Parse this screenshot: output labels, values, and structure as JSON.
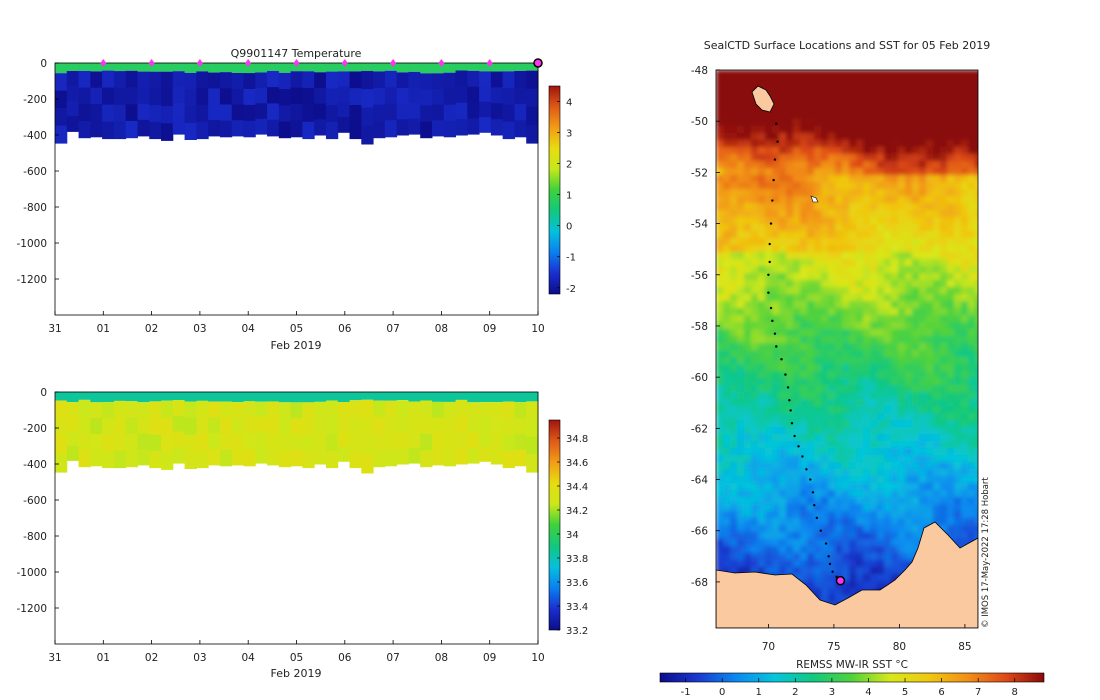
{
  "colors": {
    "land": "#fbc9a0",
    "marker": "#ff33ee",
    "track": "#000000",
    "temp_ramp": [
      "#0c0c8a",
      "#1a2fcf",
      "#0b7ff0",
      "#05c0dc",
      "#12c87e",
      "#3ed23c",
      "#c4e81a",
      "#e8dc10",
      "#f29c16",
      "#de5a18",
      "#a0150e"
    ],
    "salt_ramp": [
      "#0c0c8a",
      "#1a2fcf",
      "#0b7ff0",
      "#05c0dc",
      "#12c87e",
      "#3ed23c",
      "#cce81a",
      "#e8dc10",
      "#f29c16",
      "#de5a18",
      "#a0150e"
    ],
    "sst_ramp": [
      "#0c0c8a",
      "#1a3ad0",
      "#0b8af0",
      "#05c6dc",
      "#12c87e",
      "#52d23c",
      "#d8e81a",
      "#f0c810",
      "#f29016",
      "#de4a18",
      "#8a0a0a"
    ]
  },
  "chart_data": [
    {
      "type": "heatmap",
      "title": "Q9901147  Temperature",
      "xlabel": "Feb 2019",
      "x_ticks": [
        "31",
        "01",
        "02",
        "03",
        "04",
        "05",
        "06",
        "07",
        "08",
        "09",
        "10"
      ],
      "y_ticks": [
        "0",
        "-200",
        "-400",
        "-600",
        "-800",
        "-1000",
        "-1200"
      ],
      "ylim": [
        -1400,
        0
      ],
      "xlim": [
        0,
        10
      ],
      "colorbar": {
        "min": -2.2,
        "max": 4.5,
        "ticks": [
          "-2",
          "-1",
          "0",
          "1",
          "2",
          "3",
          "4"
        ],
        "tick_values": [
          -2,
          -1,
          0,
          1,
          2,
          3,
          4
        ]
      },
      "surface_value": 0.8,
      "subsurface_value": -1.9,
      "surface_layer_depth": 50,
      "profile_depths": [
        445,
        380,
        415,
        410,
        420,
        420,
        415,
        405,
        420,
        430,
        395,
        425,
        420,
        405,
        410,
        405,
        410,
        395,
        405,
        415,
        410,
        420,
        400,
        420,
        385,
        420,
        450,
        415,
        410,
        400,
        395,
        415,
        405,
        410,
        400,
        395,
        385,
        400,
        420,
        410,
        445
      ],
      "profile_markers_days": [
        1,
        2,
        3,
        4,
        5,
        6,
        7,
        8,
        9
      ],
      "latest_profile_day": 10
    },
    {
      "type": "heatmap",
      "title": "",
      "xlabel": "Feb 2019",
      "x_ticks": [
        "31",
        "01",
        "02",
        "03",
        "04",
        "05",
        "06",
        "07",
        "08",
        "09",
        "10"
      ],
      "y_ticks": [
        "0",
        "-200",
        "-400",
        "-600",
        "-800",
        "-1000",
        "-1200"
      ],
      "ylim": [
        -1400,
        0
      ],
      "xlim": [
        0,
        10
      ],
      "colorbar": {
        "min": 33.2,
        "max": 34.95,
        "ticks": [
          "33.2",
          "33.4",
          "33.6",
          "33.8",
          "34",
          "34.2",
          "34.4",
          "34.6",
          "34.8"
        ],
        "tick_values": [
          33.2,
          33.4,
          33.6,
          33.8,
          34,
          34.2,
          34.4,
          34.6,
          34.8
        ]
      },
      "surface_value": 33.85,
      "subsurface_value": 34.3,
      "surface_layer_depth": 50,
      "profile_depths": [
        445,
        380,
        415,
        410,
        420,
        420,
        415,
        405,
        420,
        430,
        395,
        425,
        420,
        405,
        410,
        405,
        410,
        395,
        405,
        415,
        410,
        420,
        400,
        420,
        385,
        420,
        450,
        415,
        410,
        400,
        395,
        415,
        405,
        410,
        400,
        395,
        385,
        400,
        420,
        410,
        445
      ]
    },
    {
      "type": "heatmap",
      "title": "SealCTD Surface Locations and SST for 05 Feb 2019",
      "x_ticks": [
        "70",
        "75",
        "80",
        "85"
      ],
      "x_tick_values": [
        70,
        75,
        80,
        85
      ],
      "y_ticks": [
        "-48",
        "-50",
        "-52",
        "-54",
        "-56",
        "-58",
        "-60",
        "-62",
        "-64",
        "-66",
        "-68"
      ],
      "y_tick_values": [
        -48,
        -50,
        -52,
        -54,
        -56,
        -58,
        -60,
        -62,
        -64,
        -66,
        -68
      ],
      "xlim": [
        66,
        86
      ],
      "ylim": [
        -69.8,
        -48
      ],
      "colorbar": {
        "label": "REMSS MW-IR SST °C",
        "min": -1.7,
        "max": 8.8,
        "ticks": [
          "-1",
          "0",
          "1",
          "2",
          "3",
          "4",
          "5",
          "6",
          "7",
          "8"
        ],
        "tick_values": [
          -1,
          0,
          1,
          2,
          3,
          4,
          5,
          6,
          7,
          8
        ]
      },
      "credit": "© IMOS 17-May-2022 17:28 Hobart",
      "track_lon": [
        70.6,
        70.7,
        70.5,
        70.4,
        70.3,
        70.2,
        70.1,
        70.1,
        70.0,
        70.0,
        70.2,
        70.3,
        70.5,
        70.6,
        71.0,
        71.3,
        71.5,
        71.6,
        71.7,
        71.8,
        72.0,
        72.3,
        72.6,
        72.9,
        73.2,
        73.4,
        73.5,
        73.7,
        74.0,
        74.4,
        74.6,
        74.7,
        74.9,
        75.2,
        75.5
      ],
      "track_lat": [
        -50.1,
        -50.8,
        -51.5,
        -52.3,
        -53.1,
        -54.0,
        -54.8,
        -55.5,
        -56.0,
        -56.7,
        -57.3,
        -57.8,
        -58.3,
        -58.8,
        -59.3,
        -59.9,
        -60.4,
        -60.9,
        -61.3,
        -61.8,
        -62.3,
        -62.7,
        -63.1,
        -63.6,
        -64.0,
        -64.5,
        -65.0,
        -65.5,
        -66.0,
        -66.5,
        -67.0,
        -67.3,
        -67.6,
        -67.8,
        -67.9
      ],
      "latest_position": {
        "lon": 75.5,
        "lat": -67.95
      }
    }
  ]
}
